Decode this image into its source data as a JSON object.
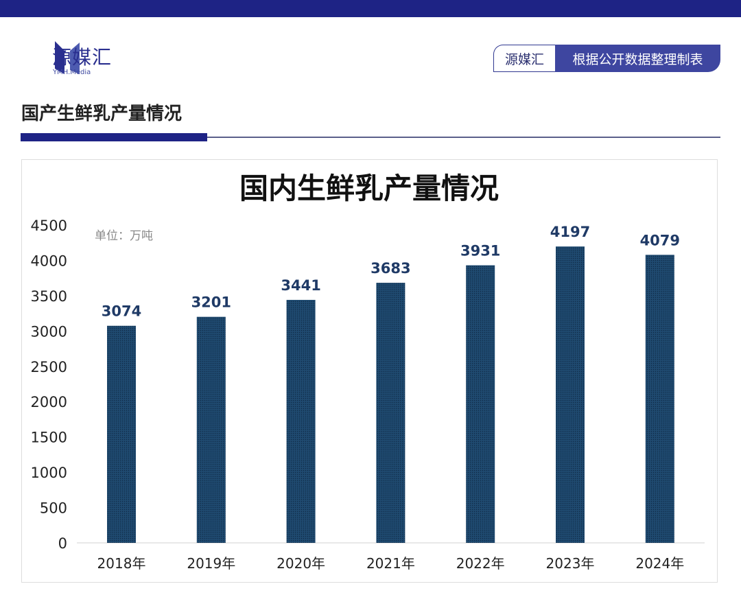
{
  "brand": {
    "name": "源媒汇",
    "sub": "YMH.Media",
    "color": "#1e2385"
  },
  "badge": {
    "left": "源媒汇",
    "right": "根据公开数据整理制表"
  },
  "section_title": "国产生鲜乳产量情况",
  "chart_data": {
    "type": "bar",
    "title": "国内生鲜乳产量情况",
    "unit_label": "单位：万吨",
    "categories": [
      "2018年",
      "2019年",
      "2020年",
      "2021年",
      "2022年",
      "2023年",
      "2024年"
    ],
    "values": [
      3074,
      3201,
      3441,
      3683,
      3931,
      4197,
      4079
    ],
    "ylim": [
      0,
      4500
    ],
    "yticks": [
      0,
      500,
      1000,
      1500,
      2000,
      2500,
      3000,
      3500,
      4000,
      4500
    ],
    "grid": false,
    "bar_color": "#1f4a70",
    "label_color": "#1f3a66"
  }
}
